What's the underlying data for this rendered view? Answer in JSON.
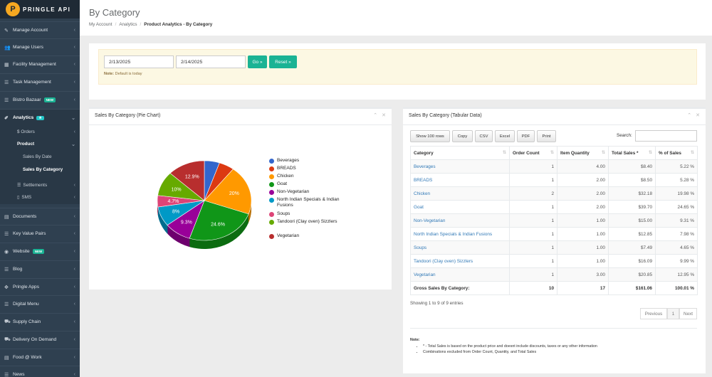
{
  "brand": {
    "logo_text": "PRINGLE API",
    "logo_letter": "P"
  },
  "sidebar": {
    "items": [
      {
        "label": "Manage Account",
        "icon": "wrench-icon",
        "glyph": "✎"
      },
      {
        "label": "Manage Users",
        "icon": "users-icon",
        "glyph": "👥"
      },
      {
        "label": "Facility Management",
        "icon": "building-icon",
        "glyph": "▦"
      },
      {
        "label": "Task Management",
        "icon": "list-icon",
        "glyph": "☰"
      },
      {
        "label": "Bistro Bazaar",
        "icon": "list-icon",
        "glyph": "☰",
        "badge": "NEW"
      },
      {
        "label": "Analytics",
        "icon": "wand-icon",
        "glyph": "✐",
        "badge": "★"
      },
      {
        "label": "Documents",
        "icon": "book-icon",
        "glyph": "▤"
      },
      {
        "label": "Key Value Pairs",
        "icon": "list-icon",
        "glyph": "☰"
      },
      {
        "label": "Website",
        "icon": "globe-icon",
        "glyph": "◉",
        "badge": "NEW"
      },
      {
        "label": "Blog",
        "icon": "list-icon",
        "glyph": "☰"
      },
      {
        "label": "Pringle Apps",
        "icon": "arrows-icon",
        "glyph": "✥"
      },
      {
        "label": "Digital Menu",
        "icon": "list-icon",
        "glyph": "☰"
      },
      {
        "label": "Supply Chain",
        "icon": "truck-icon",
        "glyph": "⛟"
      },
      {
        "label": "Delivery On Demand",
        "icon": "truck-icon",
        "glyph": "⛟"
      },
      {
        "label": "Food @ Work",
        "icon": "book-icon",
        "glyph": "▤"
      },
      {
        "label": "News",
        "icon": "list-icon",
        "glyph": "☰"
      }
    ],
    "analytics_sub": {
      "orders": "$  Orders",
      "product": "Product",
      "sales_by_date": "Sales By Date",
      "sales_by_category": "Sales By Category",
      "settlements": "Settlements",
      "sms": "SMS"
    }
  },
  "header": {
    "title": "By Category",
    "breadcrumb": [
      "My Account",
      "Analytics",
      "Product Analytics - By Category"
    ]
  },
  "filter": {
    "start_date": "2/13/2025",
    "end_date": "2/14/2025",
    "go_label": "Go »",
    "reset_label": "Reset »",
    "note_label": "Note:",
    "note_text": "Default is today"
  },
  "pie_panel": {
    "title": "Sales By Category (Pie Chart)",
    "collapse": "⌃",
    "close": "✕"
  },
  "table_panel": {
    "title": "Sales By Category (Tabular Data)",
    "collapse": "⌃",
    "close": "✕",
    "buttons": [
      "Show 100 rows",
      "Copy",
      "CSV",
      "Excel",
      "PDF",
      "Print"
    ],
    "search_label": "Search:",
    "columns": [
      "Category",
      "Order Count",
      "Item Quantity",
      "Total Sales *",
      "% of Sales"
    ],
    "rows": [
      [
        "Beverages",
        "1",
        "4.00",
        "$8.40",
        "5.22 %"
      ],
      [
        "BREADS",
        "1",
        "2.00",
        "$8.50",
        "5.28 %"
      ],
      [
        "Chicken",
        "2",
        "2.00",
        "$32.18",
        "19.98 %"
      ],
      [
        "Goat",
        "1",
        "2.00",
        "$39.70",
        "24.65 %"
      ],
      [
        "Non-Vegetarian",
        "1",
        "1.00",
        "$15.00",
        "9.31 %"
      ],
      [
        "North Indian Specials & Indian Fusions",
        "1",
        "1.00",
        "$12.85",
        "7.98 %"
      ],
      [
        "Soups",
        "1",
        "1.00",
        "$7.49",
        "4.65 %"
      ],
      [
        "Tandoori (Clay oven) Sizzlers",
        "1",
        "1.00",
        "$16.09",
        "9.99 %"
      ],
      [
        "Vegetarian",
        "1",
        "3.00",
        "$20.85",
        "12.95 %"
      ]
    ],
    "total_row": [
      "Gross Sales By Category:",
      "10",
      "17",
      "$161.06",
      "100.01 %"
    ],
    "info": "Showing 1 to 9 of 9 entries",
    "pager": {
      "previous": "Previous",
      "page": "1",
      "next": "Next"
    },
    "notes_title": "Note:",
    "notes": [
      "* - Total Sales is based on the product price and doesnt include discounts, taxes or any other information",
      "Combinations excluded from Order Count, Quantity, and Total Sales"
    ]
  },
  "chart_data": {
    "type": "pie",
    "categories": [
      "Beverages",
      "BREADS",
      "Chicken",
      "Goat",
      "Non-Vegetarian",
      "North Indian Specials & Indian Fusions",
      "Soups",
      "Tandoori (Clay oven) Sizzlers",
      "Vegetarian"
    ],
    "values": [
      5.22,
      5.28,
      19.98,
      24.65,
      9.31,
      7.98,
      4.65,
      9.99,
      12.95
    ],
    "slice_labels": [
      "",
      "",
      "20%",
      "24.6%",
      "9.3%",
      "8%",
      "4.7%",
      "10%",
      "12.9%"
    ],
    "colors": [
      "#3366cc",
      "#dc3912",
      "#ff9900",
      "#109618",
      "#990099",
      "#0099c6",
      "#dd4477",
      "#66aa00",
      "#b82e2e"
    ],
    "legend_position": "right"
  }
}
